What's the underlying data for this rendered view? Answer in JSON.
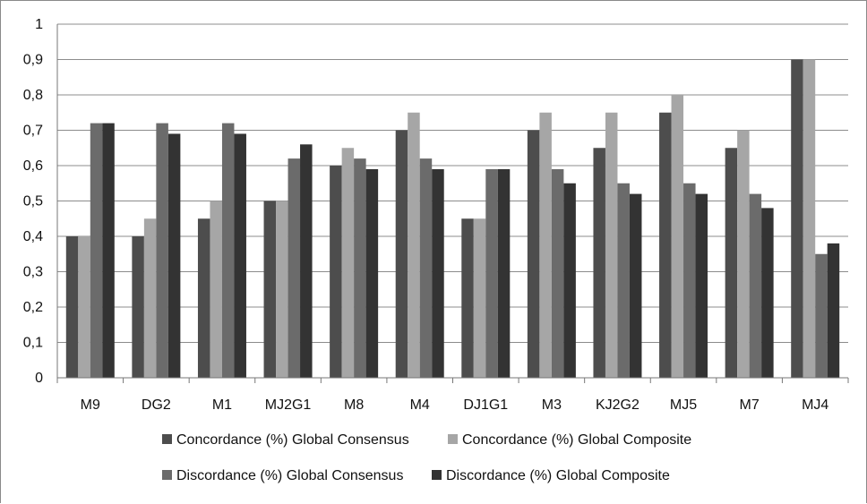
{
  "chart_data": {
    "type": "bar",
    "title": "",
    "xlabel": "",
    "ylabel": "",
    "ylim": [
      0,
      1
    ],
    "yticks": [
      "0",
      "0,1",
      "0,2",
      "0,3",
      "0,4",
      "0,5",
      "0,6",
      "0,7",
      "0,8",
      "0,9",
      "1"
    ],
    "grid": true,
    "legend_position": "bottom",
    "categories": [
      "M9",
      "DG2",
      "M1",
      "MJ2G1",
      "M8",
      "M4",
      "DJ1G1",
      "M3",
      "KJ2G2",
      "MJ5",
      "M7",
      "MJ4"
    ],
    "series": [
      {
        "name": "Concordance (%) Global Consensus",
        "color": "#4d4d4d",
        "values": [
          0.4,
          0.4,
          0.45,
          0.5,
          0.6,
          0.7,
          0.45,
          0.7,
          0.65,
          0.75,
          0.65,
          0.9
        ]
      },
      {
        "name": "Concordance (%) Global Composite",
        "color": "#a6a6a6",
        "values": [
          0.4,
          0.45,
          0.5,
          0.5,
          0.65,
          0.75,
          0.45,
          0.75,
          0.75,
          0.8,
          0.7,
          0.9
        ]
      },
      {
        "name": "Discordance (%) Global Consensus",
        "color": "#6b6b6b",
        "values": [
          0.72,
          0.72,
          0.72,
          0.62,
          0.62,
          0.62,
          0.59,
          0.59,
          0.55,
          0.55,
          0.52,
          0.35
        ]
      },
      {
        "name": "Discordance (%) Global Composite",
        "color": "#333333",
        "values": [
          0.72,
          0.69,
          0.69,
          0.66,
          0.59,
          0.59,
          0.59,
          0.55,
          0.52,
          0.52,
          0.48,
          0.38
        ]
      }
    ]
  }
}
